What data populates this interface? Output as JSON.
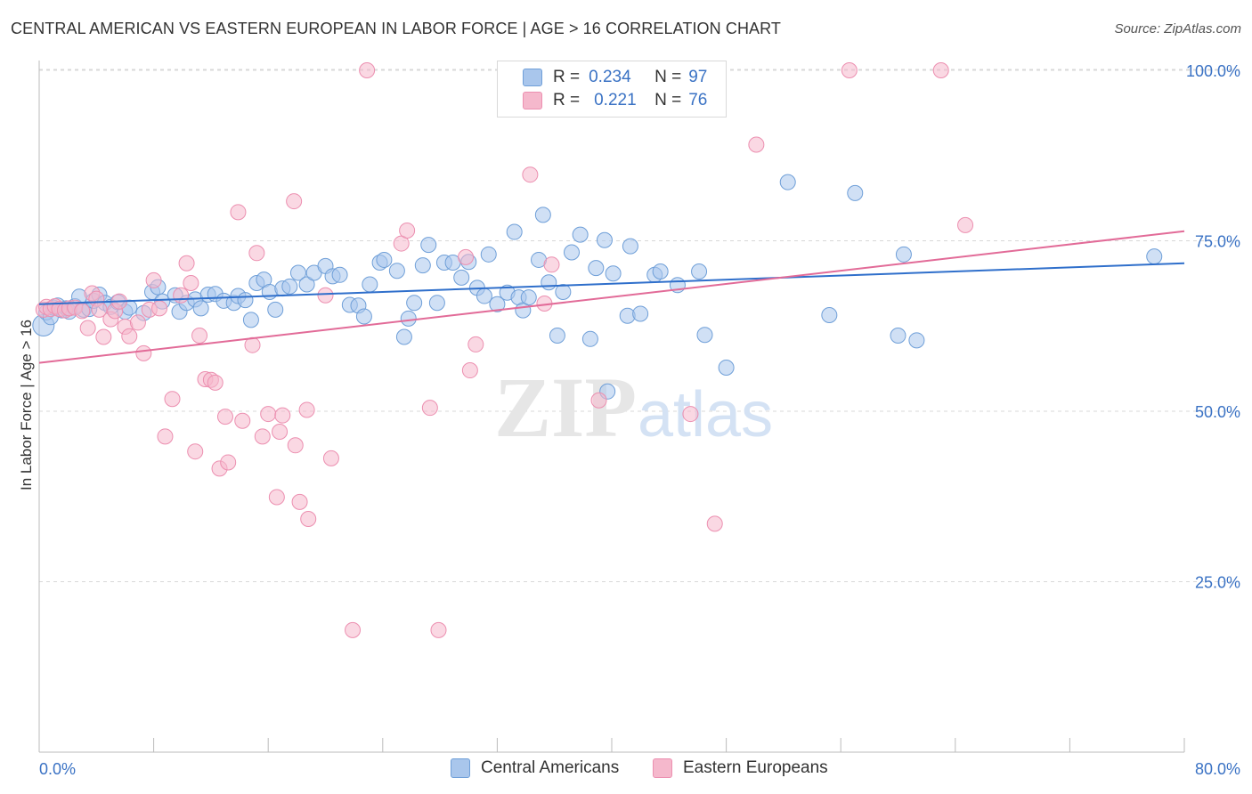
{
  "header": {
    "title": "CENTRAL AMERICAN VS EASTERN EUROPEAN IN LABOR FORCE | AGE > 16 CORRELATION CHART",
    "source": "Source: ZipAtlas.com"
  },
  "legend": {
    "blue": {
      "r_label": "R =",
      "r_value": "0.234",
      "n_label": "N =",
      "n_value": "97"
    },
    "pink": {
      "r_label": "R =",
      "r_value": "0.221",
      "n_label": "N =",
      "n_value": "76"
    }
  },
  "bottom_legend": {
    "blue": "Central Americans",
    "pink": "Eastern Europeans"
  },
  "watermark": {
    "zip": "ZIP",
    "atlas": "atlas"
  },
  "colors": {
    "blue_fill": "#a9c6ec",
    "blue_stroke": "#6f9fd8",
    "blue_line": "#2f6fcb",
    "pink_fill": "#f5b8cc",
    "pink_stroke": "#ec8fb0",
    "pink_line": "#e26b98",
    "tick_label": "#3a72c4",
    "grid": "#d8d8d8"
  },
  "chart_data": {
    "type": "scatter",
    "title": "CENTRAL AMERICAN VS EASTERN EUROPEAN IN LABOR FORCE | AGE > 16 CORRELATION CHART",
    "xlabel": "",
    "ylabel": "In Labor Force | Age > 16",
    "xlim": [
      0,
      80
    ],
    "ylim": [
      0,
      105
    ],
    "x_tick_labels": [
      "0.0%",
      "80.0%"
    ],
    "y_ticks": [
      25,
      50,
      75,
      100
    ],
    "y_tick_labels": [
      "25.0%",
      "50.0%",
      "75.0%",
      "100.0%"
    ],
    "grid": true,
    "legend_placement": "top-center",
    "series": [
      {
        "name": "Central Americans",
        "color": "#6f9fd8",
        "trend": [
          [
            0,
            65.7
          ],
          [
            80,
            71.7
          ]
        ],
        "points": [
          [
            0.3,
            62.6
          ],
          [
            0.5,
            64.5
          ],
          [
            0.8,
            63.8
          ],
          [
            1.0,
            65.2
          ],
          [
            1.3,
            65.5
          ],
          [
            1.6,
            64.8
          ],
          [
            1.9,
            65.1
          ],
          [
            2.1,
            64.6
          ],
          [
            2.5,
            65.4
          ],
          [
            2.8,
            66.8
          ],
          [
            3.1,
            64.9
          ],
          [
            3.5,
            65.0
          ],
          [
            3.8,
            66.2
          ],
          [
            4.2,
            67.1
          ],
          [
            4.6,
            65.9
          ],
          [
            5.0,
            65.3
          ],
          [
            5.5,
            66.0
          ],
          [
            6.0,
            64.6
          ],
          [
            6.3,
            65.2
          ],
          [
            7.3,
            64.4
          ],
          [
            7.9,
            67.5
          ],
          [
            8.3,
            68.2
          ],
          [
            8.6,
            66.1
          ],
          [
            9.5,
            67.0
          ],
          [
            9.8,
            64.6
          ],
          [
            10.3,
            65.9
          ],
          [
            10.9,
            66.4
          ],
          [
            11.3,
            65.1
          ],
          [
            11.8,
            67.1
          ],
          [
            12.3,
            67.2
          ],
          [
            12.9,
            66.2
          ],
          [
            13.6,
            65.9
          ],
          [
            13.9,
            66.9
          ],
          [
            14.4,
            66.3
          ],
          [
            14.8,
            63.4
          ],
          [
            15.2,
            68.8
          ],
          [
            15.7,
            69.3
          ],
          [
            16.1,
            67.5
          ],
          [
            16.5,
            64.9
          ],
          [
            17.0,
            68.0
          ],
          [
            17.5,
            68.3
          ],
          [
            18.1,
            70.3
          ],
          [
            18.7,
            68.6
          ],
          [
            19.2,
            70.3
          ],
          [
            20.0,
            71.3
          ],
          [
            20.5,
            69.8
          ],
          [
            21.0,
            70.0
          ],
          [
            21.7,
            65.6
          ],
          [
            22.3,
            65.5
          ],
          [
            22.7,
            63.9
          ],
          [
            23.1,
            68.6
          ],
          [
            23.8,
            71.8
          ],
          [
            24.1,
            72.2
          ],
          [
            25.0,
            70.6
          ],
          [
            25.5,
            60.9
          ],
          [
            25.8,
            63.6
          ],
          [
            26.2,
            65.9
          ],
          [
            26.8,
            71.4
          ],
          [
            27.2,
            74.4
          ],
          [
            27.8,
            65.9
          ],
          [
            28.3,
            71.8
          ],
          [
            28.9,
            71.8
          ],
          [
            29.5,
            69.6
          ],
          [
            30.0,
            71.9
          ],
          [
            30.6,
            68.1
          ],
          [
            31.1,
            66.9
          ],
          [
            31.4,
            73.0
          ],
          [
            32.0,
            65.7
          ],
          [
            32.7,
            67.4
          ],
          [
            33.2,
            76.3
          ],
          [
            33.5,
            66.7
          ],
          [
            33.8,
            64.8
          ],
          [
            34.2,
            66.7
          ],
          [
            34.9,
            72.2
          ],
          [
            35.2,
            78.8
          ],
          [
            35.6,
            68.9
          ],
          [
            36.2,
            61.1
          ],
          [
            36.6,
            67.5
          ],
          [
            37.2,
            73.3
          ],
          [
            37.8,
            75.9
          ],
          [
            38.5,
            60.6
          ],
          [
            38.9,
            71.0
          ],
          [
            39.5,
            75.1
          ],
          [
            39.7,
            52.9
          ],
          [
            40.1,
            70.2
          ],
          [
            41.1,
            64.0
          ],
          [
            41.3,
            74.2
          ],
          [
            42.0,
            64.3
          ],
          [
            43.0,
            70.0
          ],
          [
            43.4,
            70.5
          ],
          [
            44.6,
            68.5
          ],
          [
            46.1,
            70.5
          ],
          [
            46.5,
            61.2
          ],
          [
            48.0,
            56.4
          ],
          [
            52.3,
            83.6
          ],
          [
            55.2,
            64.1
          ],
          [
            57.0,
            82.0
          ],
          [
            60.0,
            61.1
          ],
          [
            60.4,
            73.0
          ],
          [
            61.3,
            60.4
          ],
          [
            77.9,
            72.7
          ]
        ]
      },
      {
        "name": "Eastern Europeans",
        "color": "#ec8fb0",
        "trend": [
          [
            0,
            57.1
          ],
          [
            80,
            76.4
          ]
        ],
        "points": [
          [
            0.3,
            64.9
          ],
          [
            0.5,
            65.3
          ],
          [
            0.8,
            65.0
          ],
          [
            1.1,
            65.4
          ],
          [
            1.4,
            65.0
          ],
          [
            1.8,
            64.8
          ],
          [
            2.1,
            65.1
          ],
          [
            2.5,
            65.2
          ],
          [
            3.0,
            64.7
          ],
          [
            3.4,
            62.2
          ],
          [
            3.7,
            67.3
          ],
          [
            4.0,
            66.5
          ],
          [
            4.2,
            64.9
          ],
          [
            4.5,
            60.9
          ],
          [
            5.0,
            63.5
          ],
          [
            5.3,
            64.7
          ],
          [
            5.6,
            66.1
          ],
          [
            6.0,
            62.4
          ],
          [
            6.3,
            61.0
          ],
          [
            6.9,
            63.0
          ],
          [
            7.3,
            58.5
          ],
          [
            7.7,
            64.9
          ],
          [
            8.0,
            69.2
          ],
          [
            8.4,
            65.1
          ],
          [
            8.8,
            46.3
          ],
          [
            9.3,
            51.8
          ],
          [
            9.9,
            67.0
          ],
          [
            10.3,
            71.7
          ],
          [
            10.6,
            68.8
          ],
          [
            10.9,
            44.1
          ],
          [
            11.2,
            61.1
          ],
          [
            11.6,
            54.7
          ],
          [
            12.0,
            54.6
          ],
          [
            12.3,
            54.2
          ],
          [
            12.6,
            41.6
          ],
          [
            13.0,
            49.2
          ],
          [
            13.2,
            42.5
          ],
          [
            13.9,
            79.2
          ],
          [
            14.2,
            48.6
          ],
          [
            14.9,
            59.7
          ],
          [
            15.2,
            73.2
          ],
          [
            15.6,
            46.3
          ],
          [
            16.0,
            49.6
          ],
          [
            16.6,
            37.4
          ],
          [
            16.8,
            47.0
          ],
          [
            17.0,
            49.4
          ],
          [
            17.8,
            80.8
          ],
          [
            17.9,
            45.0
          ],
          [
            18.2,
            36.7
          ],
          [
            18.7,
            50.2
          ],
          [
            18.8,
            34.2
          ],
          [
            20.0,
            67.0
          ],
          [
            20.4,
            43.1
          ],
          [
            21.9,
            17.9
          ],
          [
            22.9,
            100.0
          ],
          [
            25.3,
            74.6
          ],
          [
            25.7,
            76.5
          ],
          [
            27.3,
            50.5
          ],
          [
            27.9,
            17.9
          ],
          [
            29.8,
            72.6
          ],
          [
            30.1,
            56.0
          ],
          [
            30.5,
            59.8
          ],
          [
            34.3,
            84.7
          ],
          [
            35.3,
            65.8
          ],
          [
            35.8,
            71.5
          ],
          [
            39.1,
            51.6
          ],
          [
            45.5,
            49.6
          ],
          [
            47.2,
            33.5
          ],
          [
            50.1,
            89.1
          ],
          [
            56.6,
            100.0
          ],
          [
            63.0,
            100.0
          ],
          [
            64.7,
            77.3
          ]
        ]
      }
    ]
  }
}
